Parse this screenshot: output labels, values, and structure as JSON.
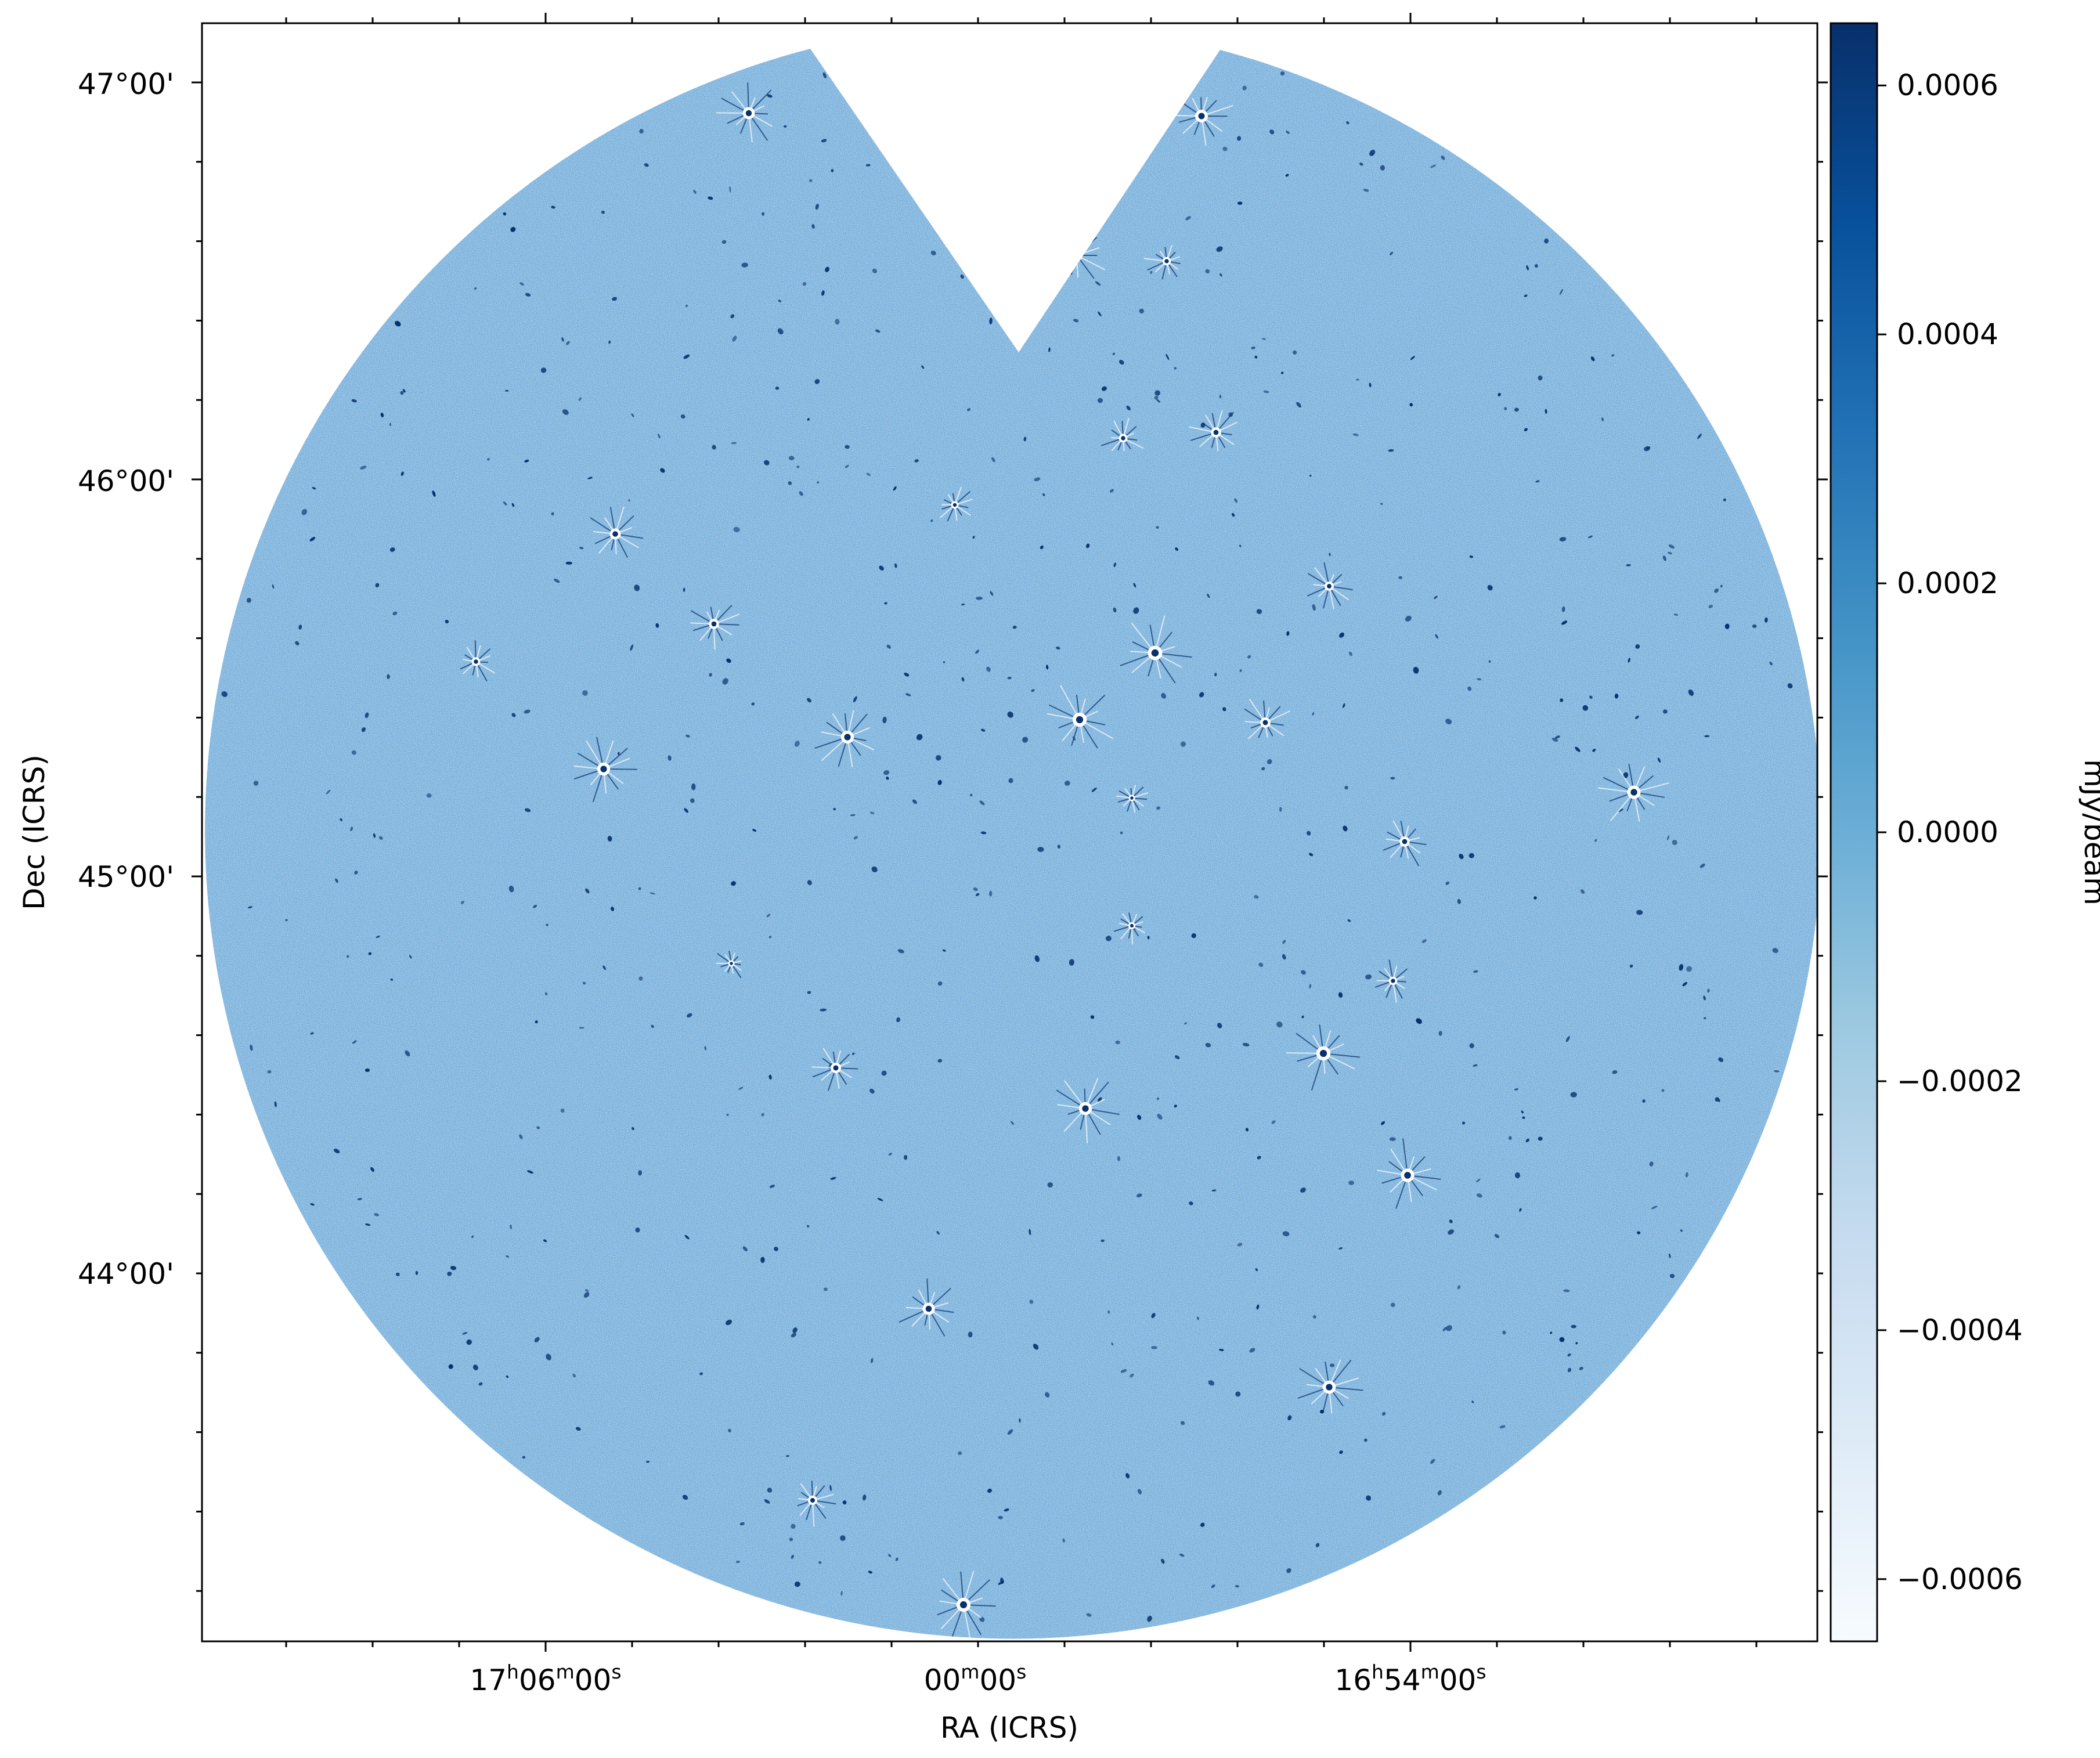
{
  "figure": {
    "xlabel": "RA (ICRS)",
    "ylabel": "Dec (ICRS)",
    "x_ticks": [
      {
        "ra": "17h06m00s",
        "h": "17",
        "m": "06",
        "s": "00"
      },
      {
        "ra": "17h00m00s",
        "h": "",
        "m": "00",
        "s": "00"
      },
      {
        "ra": "16h54m00s",
        "h": "16",
        "m": "54",
        "s": "00"
      }
    ],
    "y_ticks": [
      {
        "dec": 47,
        "label": "47°00'"
      },
      {
        "dec": 46,
        "label": "46°00'"
      },
      {
        "dec": 45,
        "label": "45°00'"
      },
      {
        "dec": 44,
        "label": "44°00'"
      }
    ],
    "unit_superscripts": {
      "h": "h",
      "m": "m",
      "s": "s"
    }
  },
  "colorbar": {
    "label": "mJy/beam",
    "vmin": -0.00065,
    "vmax": 0.00065,
    "colormap": "Blues",
    "ticks": [
      {
        "value": 0.0006,
        "label": "0.0006"
      },
      {
        "value": 0.0004,
        "label": "0.0004"
      },
      {
        "value": 0.0002,
        "label": "0.0002"
      },
      {
        "value": 0.0,
        "label": "0.0000"
      },
      {
        "value": -0.0002,
        "label": "−0.0002"
      },
      {
        "value": -0.0004,
        "label": "−0.0004"
      },
      {
        "value": -0.0006,
        "label": "−0.0006"
      }
    ],
    "colors": [
      "#f7fbff",
      "#deebf7",
      "#c6dbef",
      "#9ecae1",
      "#6baed6",
      "#4292c6",
      "#2171b5",
      "#08519c",
      "#08306b"
    ]
  },
  "image": {
    "field_color": "#6da9d8",
    "noise_light": "#d6e8f7",
    "noise_dark": "#3f86c4",
    "source_color": "#08306b"
  }
}
